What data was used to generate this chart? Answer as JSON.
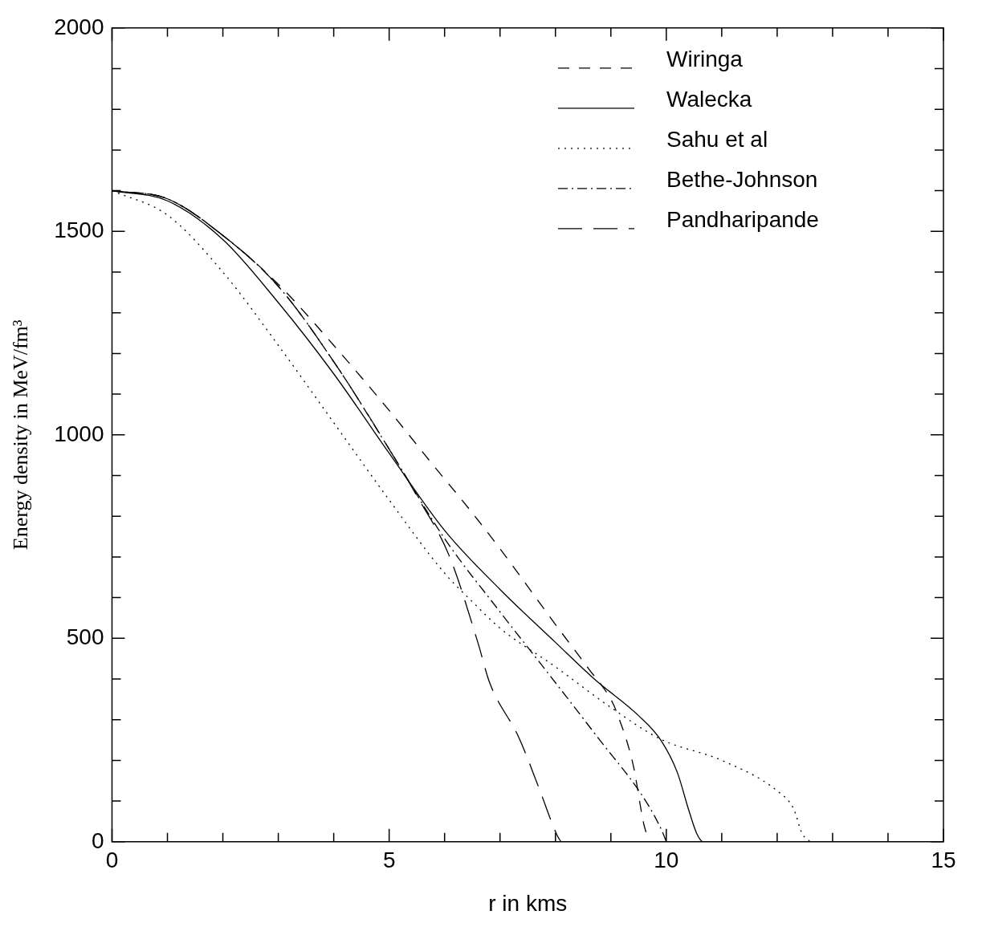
{
  "chart_data": {
    "type": "line",
    "xlabel": "r in kms",
    "ylabel": "Energy density in MeV/fm³",
    "xlim": [
      0,
      15
    ],
    "xticks": [
      0,
      5,
      10,
      15
    ],
    "ylim": [
      0,
      2000
    ],
    "yticks": [
      0,
      500,
      1000,
      1500,
      2000
    ],
    "grid": false,
    "legend": "top right",
    "marker": "none",
    "series": [
      {
        "name": "Wiringa",
        "color": "#000000",
        "line_style": "dashed",
        "x": [
          0,
          1,
          2,
          3,
          4,
          5,
          5.72,
          6.46,
          7,
          8,
          8.6,
          9,
          9.1,
          9.4,
          9.6,
          9.7
        ],
        "values": [
          1600,
          1580,
          1490,
          1370,
          1220,
          1060,
          938,
          815,
          720,
          534,
          425,
          350,
          320,
          190,
          40,
          0
        ]
      },
      {
        "name": "Walecka",
        "color": "#000000",
        "line_style": "solid",
        "x": [
          0,
          1,
          2,
          3,
          4,
          5,
          6,
          7,
          8,
          8.7,
          9.5,
          9.9,
          10.2,
          10.4,
          10.55,
          10.67,
          10.8
        ],
        "values": [
          1600,
          1575,
          1480,
          1325,
          1150,
          955,
          765,
          620,
          490,
          400,
          310,
          250,
          170,
          80,
          20,
          0,
          0
        ]
      },
      {
        "name": "Sahu et al",
        "color": "#000000",
        "line_style": "dotted",
        "x": [
          0,
          1,
          2,
          3,
          4,
          5,
          6,
          6.5,
          7,
          8,
          9,
          9.9,
          11,
          12,
          12.3,
          12.45,
          12.6
        ],
        "values": [
          1600,
          1540,
          1400,
          1220,
          1030,
          840,
          660,
          590,
          525,
          430,
          330,
          252,
          200,
          125,
          80,
          20,
          0
        ]
      },
      {
        "name": "Bethe-Johnson",
        "color": "#000000",
        "line_style": "dashdot",
        "x": [
          0,
          1,
          2,
          3,
          4,
          5,
          6,
          7,
          7.88,
          8.8,
          9.54,
          9.8,
          9.94,
          10
        ],
        "values": [
          1600,
          1580,
          1490,
          1365,
          1180,
          965,
          745,
          565,
          412,
          250,
          119,
          60,
          21,
          0
        ]
      },
      {
        "name": "Pandharipande",
        "color": "#000000",
        "line_style": "longdash",
        "x": [
          0,
          1,
          2,
          3,
          4,
          5,
          5.5,
          6.08,
          6.6,
          6.81,
          7.34,
          7.7,
          8.03,
          8.1
        ],
        "values": [
          1600,
          1580,
          1490,
          1365,
          1180,
          965,
          850,
          704,
          490,
          392,
          256,
          133,
          16,
          0
        ]
      }
    ]
  }
}
